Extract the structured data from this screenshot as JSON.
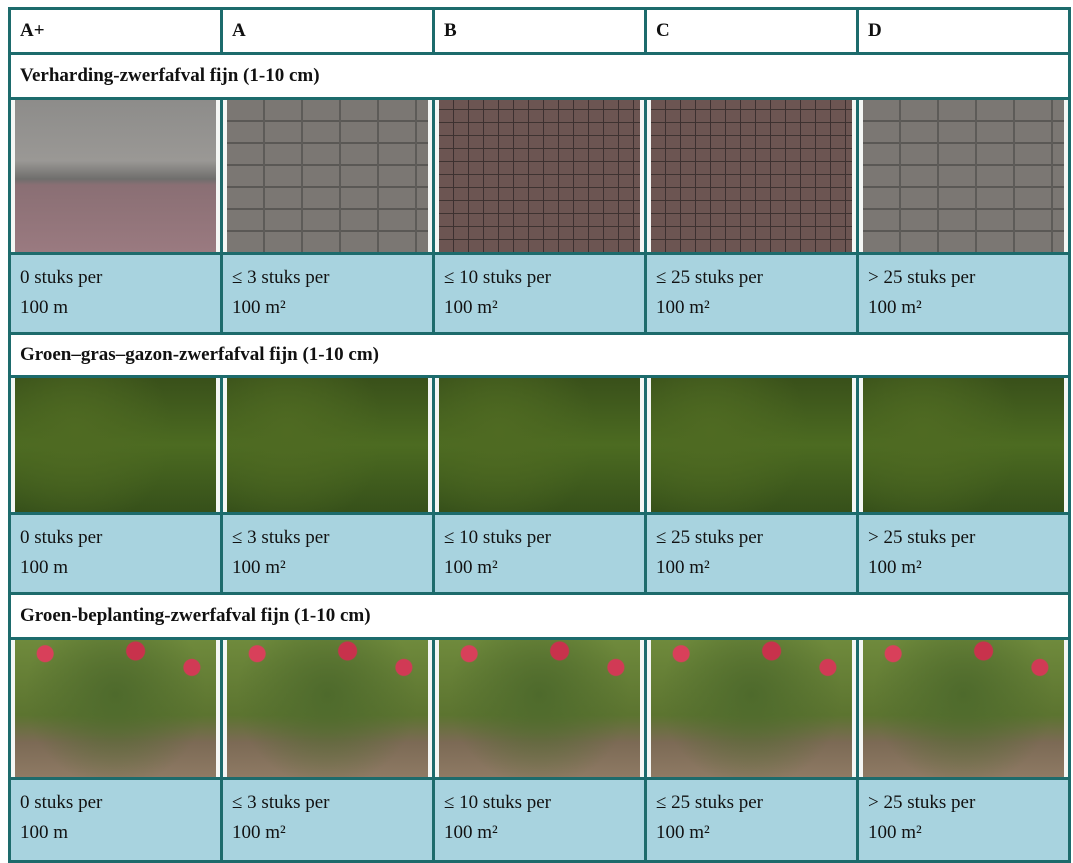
{
  "header": {
    "columns": [
      "A+",
      "A",
      "B",
      "C",
      "D"
    ]
  },
  "sections": [
    {
      "title": "Verharding-zwerfafval fijn (1-10 cm)",
      "cells": [
        [
          "0 stuks per",
          "100 m"
        ],
        [
          "≤ 3 stuks per",
          "100 m²"
        ],
        [
          "≤ 10 stuks per",
          "100 m²"
        ],
        [
          "≤ 25 stuks per",
          "100 m²"
        ],
        [
          "> 25 stuks per",
          "100 m²"
        ]
      ]
    },
    {
      "title": "Groen–gras–gazon-zwerfafval fijn (1-10 cm)",
      "cells": [
        [
          "0 stuks per",
          "100 m"
        ],
        [
          "≤ 3 stuks per",
          "100 m²"
        ],
        [
          "≤ 10 stuks per",
          "100 m²"
        ],
        [
          "≤ 25 stuks per",
          "100 m²"
        ],
        [
          "> 25 stuks per",
          "100 m²"
        ]
      ]
    },
    {
      "title": "Groen-beplanting-zwerfafval fijn (1-10 cm)",
      "cells": [
        [
          "0 stuks per",
          "100 m"
        ],
        [
          "≤ 3 stuks per",
          "100 m²"
        ],
        [
          "≤ 10 stuks per",
          "100 m²"
        ],
        [
          "≤ 25 stuks per",
          "100 m²"
        ],
        [
          "> 25 stuks per",
          "100 m²"
        ]
      ]
    }
  ]
}
